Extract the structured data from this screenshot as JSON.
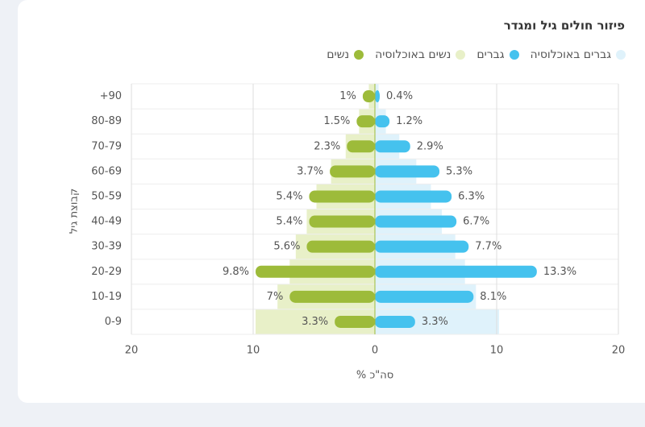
{
  "chart_data": {
    "type": "pyramid",
    "title": "פיזור חולים גיל ומגדר",
    "y_label": "קבוצת גיל",
    "x_label": "% סה\"כ",
    "categories": [
      "+90",
      "80-89",
      "70-79",
      "60-69",
      "50-59",
      "40-49",
      "30-39",
      "20-29",
      "10-19",
      "0-9"
    ],
    "xlim": [
      -20,
      20
    ],
    "xticks": [
      {
        "value": -20,
        "label": "20"
      },
      {
        "value": -10,
        "label": "10"
      },
      0,
      10,
      20
    ],
    "grid": true,
    "series": [
      {
        "name": "גברים באוכלוסיה",
        "color": "#dff2fb",
        "side": "right",
        "layer": "background",
        "values": [
          0.3,
          0.9,
          2,
          3.4,
          4.6,
          5.5,
          6.6,
          7.4,
          8.3,
          10.2
        ]
      },
      {
        "name": "גברים",
        "color": "#45c2ee",
        "side": "right",
        "layer": "foreground",
        "values": [
          0.4,
          1.2,
          2.9,
          5.3,
          6.3,
          6.7,
          7.7,
          13.3,
          8.1,
          3.3
        ],
        "value_labels": [
          "0.4%",
          "1.2%",
          "2.9%",
          "5.3%",
          "6.3%",
          "6.7%",
          "7.7%",
          "13.3%",
          "8.1%",
          "3.3%"
        ]
      },
      {
        "name": "נשים באוכלוסיה",
        "color": "#e8f0c8",
        "side": "left",
        "layer": "background",
        "values": [
          0.5,
          1.3,
          2.4,
          3.6,
          4.8,
          5.6,
          6.5,
          7,
          8,
          9.8
        ]
      },
      {
        "name": "נשים",
        "color": "#9dbb3a",
        "side": "left",
        "layer": "foreground",
        "values": [
          1,
          1.5,
          2.3,
          3.7,
          5.4,
          5.4,
          5.6,
          9.8,
          7,
          3.3
        ],
        "value_labels": [
          "1%",
          "1.5%",
          "2.3%",
          "3.7%",
          "5.4%",
          "5.4%",
          "5.6%",
          "9.8%",
          "7%",
          "3.3%"
        ]
      }
    ]
  }
}
